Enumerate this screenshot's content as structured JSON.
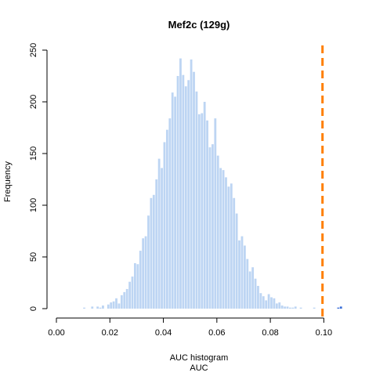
{
  "chart_data": {
    "type": "bar",
    "title": "Mef2c (129g)",
    "xlabel": "AUC histogram",
    "xlabel2": "AUC",
    "ylabel": "Frequency",
    "xlim": [
      0.0,
      0.1075
    ],
    "ylim": [
      0,
      250
    ],
    "xticks": [
      0.0,
      0.02,
      0.04,
      0.06,
      0.08,
      0.1
    ],
    "xtick_labels": [
      "0.00",
      "0.02",
      "0.04",
      "0.06",
      "0.08",
      "0.10"
    ],
    "yticks": [
      0,
      50,
      100,
      150,
      200,
      250
    ],
    "ytick_labels": [
      "0",
      "50",
      "100",
      "150",
      "200",
      "250"
    ],
    "bin_width": 0.001,
    "bins_start": [
      0.01,
      0.011,
      0.012,
      0.013,
      0.014,
      0.015,
      0.016,
      0.017,
      0.018,
      0.019,
      0.02,
      0.021,
      0.022,
      0.023,
      0.024,
      0.025,
      0.026,
      0.027,
      0.028,
      0.029,
      0.03,
      0.031,
      0.032,
      0.033,
      0.034,
      0.035,
      0.036,
      0.037,
      0.038,
      0.039,
      0.04,
      0.041,
      0.042,
      0.043,
      0.044,
      0.045,
      0.046,
      0.047,
      0.048,
      0.049,
      0.05,
      0.051,
      0.052,
      0.053,
      0.054,
      0.055,
      0.056,
      0.057,
      0.058,
      0.059,
      0.06,
      0.061,
      0.062,
      0.063,
      0.064,
      0.065,
      0.066,
      0.067,
      0.068,
      0.069,
      0.07,
      0.071,
      0.072,
      0.073,
      0.074,
      0.075,
      0.076,
      0.077,
      0.078,
      0.079,
      0.08,
      0.081,
      0.082,
      0.083,
      0.084,
      0.085,
      0.086,
      0.087,
      0.088,
      0.089,
      0.09,
      0.091,
      0.092,
      0.093,
      0.094,
      0.095,
      0.096,
      0.097,
      0.098,
      0.099,
      0.1,
      0.101,
      0.102,
      0.103,
      0.104,
      0.105,
      0.106
    ],
    "values": [
      1,
      0,
      0,
      2,
      0,
      2,
      1,
      3,
      0,
      4,
      6,
      7,
      10,
      5,
      13,
      16,
      19,
      26,
      31,
      44,
      43,
      56,
      68,
      70,
      90,
      107,
      110,
      125,
      145,
      136,
      161,
      173,
      184,
      209,
      205,
      225,
      242,
      226,
      215,
      221,
      241,
      229,
      210,
      188,
      189,
      200,
      182,
      156,
      159,
      184,
      148,
      136,
      134,
      127,
      118,
      121,
      107,
      92,
      66,
      70,
      61,
      48,
      36,
      40,
      29,
      22,
      15,
      12,
      8,
      14,
      11,
      10,
      5,
      6,
      3,
      2,
      2,
      1,
      1,
      2,
      0,
      1,
      0,
      0,
      0,
      0,
      1,
      0,
      0,
      0,
      0,
      0,
      0,
      0,
      0,
      1,
      2
    ],
    "observed_auc": 0.0995,
    "colors": {
      "bars": "#bdd5f3",
      "tail_bars": "#3a6fd8",
      "observed_line": "#ff7f00",
      "axis": "#000000"
    },
    "grid": false,
    "legend": "none"
  }
}
